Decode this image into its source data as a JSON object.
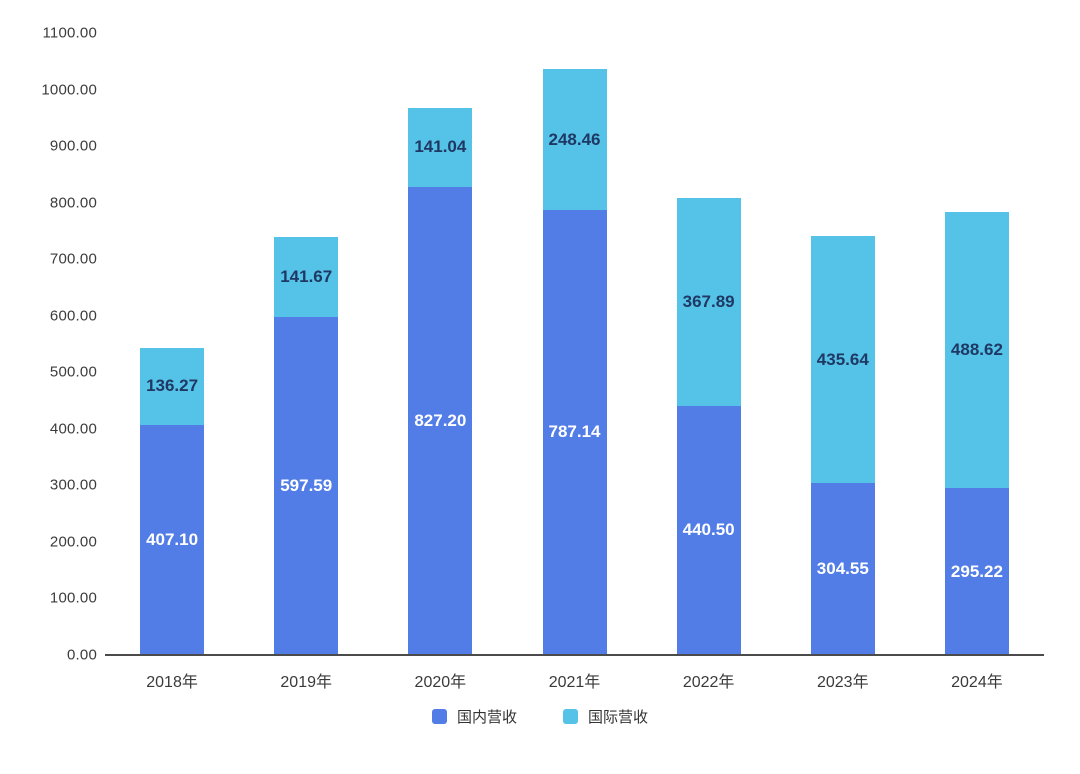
{
  "chart_data": {
    "type": "bar",
    "stacked": true,
    "title": "",
    "xlabel": "",
    "ylabel": "",
    "categories": [
      "2018年",
      "2019年",
      "2020年",
      "2021年",
      "2022年",
      "2023年",
      "2024年"
    ],
    "series": [
      {
        "name": "国内营收",
        "color": "#527de6",
        "label_color": "#ffffff",
        "values": [
          407.1,
          597.59,
          827.2,
          787.14,
          440.5,
          304.55,
          295.22
        ]
      },
      {
        "name": "国际营收",
        "color": "#55c3e8",
        "label_color": "#1f3864",
        "values": [
          136.27,
          141.67,
          141.04,
          248.46,
          367.89,
          435.64,
          488.62
        ]
      }
    ],
    "ylim": [
      0,
      1100
    ],
    "ytick_step": 100,
    "ytick_decimals": 2,
    "value_label_decimals": 2,
    "grid": false,
    "legend_position": "bottom",
    "axis_line_color": "#4b4b4b",
    "tick_label_color": "#3c3c3c",
    "x_label_color": "#3a3a3a",
    "legend_text_color": "#333333"
  }
}
